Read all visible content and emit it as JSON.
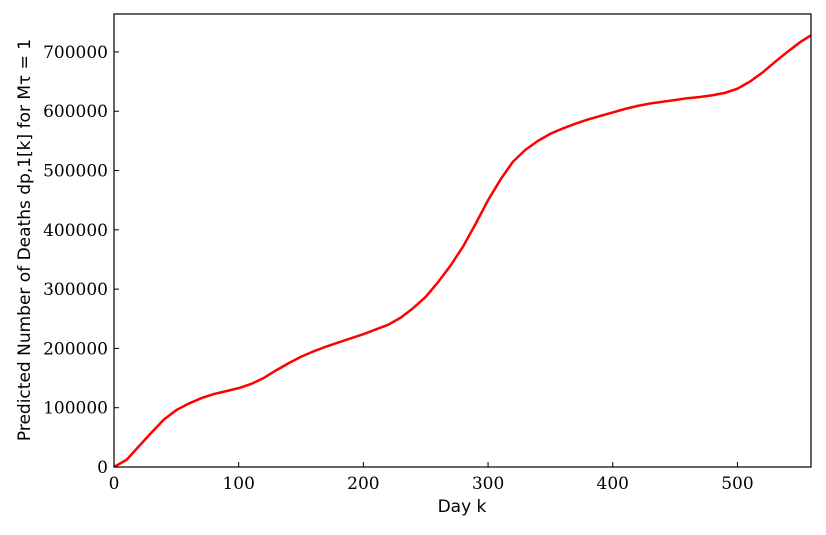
{
  "chart_data": {
    "type": "line",
    "x_label": "Day k",
    "y_label": "Predicted Number of Deaths dp,1[k] for Mτ = 1",
    "x": [
      0,
      10,
      20,
      30,
      40,
      50,
      60,
      70,
      80,
      90,
      100,
      110,
      120,
      130,
      140,
      150,
      160,
      170,
      180,
      190,
      200,
      210,
      220,
      230,
      240,
      250,
      260,
      270,
      280,
      290,
      300,
      310,
      320,
      330,
      340,
      350,
      360,
      370,
      380,
      390,
      400,
      410,
      420,
      430,
      440,
      450,
      460,
      470,
      480,
      490,
      500,
      510,
      520,
      530,
      540,
      550,
      559
    ],
    "series": [
      {
        "color": "#ff0000",
        "values": [
          0,
          12000,
          35000,
          58000,
          80000,
          96000,
          107000,
          116000,
          123000,
          128000,
          133000,
          140000,
          150000,
          163000,
          175000,
          186000,
          195000,
          203000,
          210000,
          217000,
          224000,
          232000,
          240000,
          252000,
          268000,
          287000,
          312000,
          340000,
          372000,
          410000,
          450000,
          485000,
          515000,
          535000,
          550000,
          562000,
          571000,
          579000,
          586000,
          592000,
          598000,
          604000,
          609000,
          613000,
          616000,
          619000,
          622000,
          624000,
          627000,
          631000,
          638000,
          650000,
          665000,
          683000,
          700000,
          716000,
          728000
        ]
      }
    ],
    "xlim": [
      0,
      559
    ],
    "ylim": [
      0,
      764000
    ],
    "xticks": [
      0,
      100,
      200,
      300,
      400,
      500
    ],
    "yticks": [
      0,
      100000,
      200000,
      300000,
      400000,
      500000,
      600000,
      700000
    ]
  }
}
